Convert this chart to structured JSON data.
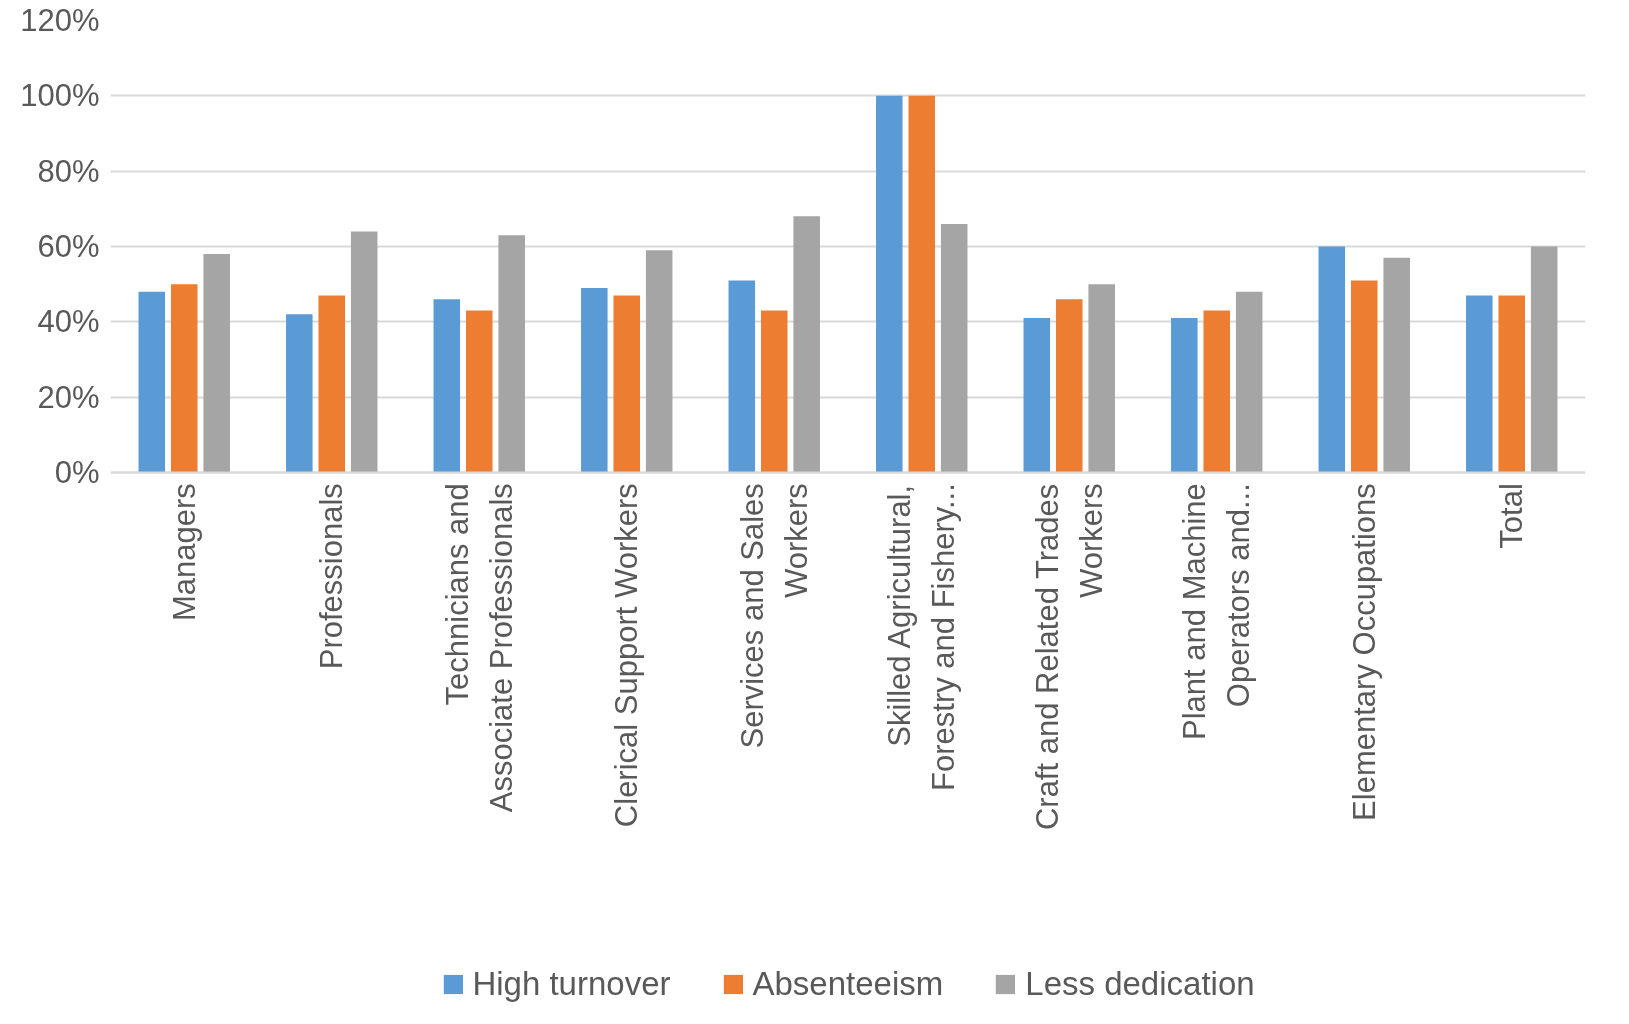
{
  "chart_data": {
    "type": "bar",
    "categories": [
      "Managers",
      "Professionals",
      "Technicians and Associate Professionals",
      "Clerical Support Workers",
      "Services and Sales Workers",
      "Skilled Agricultural, Forestry and Fishery...",
      "Craft and Related Trades Workers",
      "Plant and Machine Operators and...",
      "Elementary Occupations",
      "Total"
    ],
    "series": [
      {
        "name": "High turnover",
        "color": "#5b9bd5",
        "values": [
          48,
          42,
          46,
          49,
          51,
          100,
          41,
          41,
          60,
          47
        ]
      },
      {
        "name": "Absenteeism",
        "color": "#ed7d31",
        "values": [
          50,
          47,
          43,
          47,
          43,
          100,
          46,
          43,
          51,
          47
        ]
      },
      {
        "name": "Less dedication",
        "color": "#a5a5a5",
        "values": [
          58,
          64,
          63,
          59,
          68,
          66,
          50,
          48,
          57,
          60
        ]
      }
    ],
    "ylim": [
      0,
      120
    ],
    "yticks": [
      {
        "value": 0,
        "label": "0%"
      },
      {
        "value": 20,
        "label": "20%"
      },
      {
        "value": 40,
        "label": "40%"
      },
      {
        "value": 60,
        "label": "60%"
      },
      {
        "value": 80,
        "label": "80%"
      },
      {
        "value": 100,
        "label": "100%"
      },
      {
        "value": 120,
        "label": "120%"
      }
    ],
    "grid": "y",
    "legend": "bottom"
  }
}
